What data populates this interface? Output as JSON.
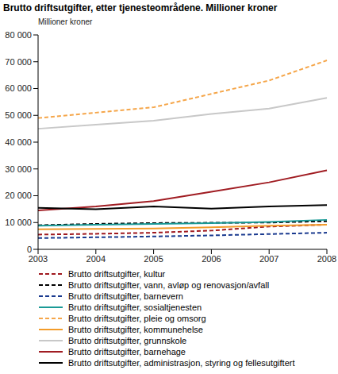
{
  "chart_data": {
    "type": "line",
    "title": "Brutto driftsutgifter, etter tjenesteområdene. Millioner kroner",
    "y_label": "Millioner kroner",
    "categories": [
      "2003",
      "2004",
      "2005",
      "2006",
      "2007",
      "2008"
    ],
    "ylim": [
      0,
      80000
    ],
    "yticks": [
      0,
      {
        "value": 10000,
        "label": "10 000"
      },
      {
        "value": 20000,
        "label": "20 000"
      },
      {
        "value": 30000,
        "label": "30 000"
      },
      {
        "value": 40000,
        "label": "40 000"
      },
      {
        "value": 50000,
        "label": "50 000"
      },
      {
        "value": 60000,
        "label": "60 000"
      },
      {
        "value": 70000,
        "label": "70 000"
      },
      {
        "value": 80000,
        "label": "80 000"
      }
    ],
    "grid": false,
    "legend": "bottom",
    "series": [
      {
        "name": "Brutto driftsutgifter, kultur",
        "color": "#a0181e",
        "line_style": "dashed",
        "values": [
          5500,
          5800,
          6200,
          7000,
          8500,
          9200
        ]
      },
      {
        "name": "Brutto driftsutgifter, vann, avløp og renovasjon/avfall",
        "color": "#000000",
        "line_style": "dashed",
        "values": [
          9000,
          9500,
          9800,
          9900,
          10000,
          10500
        ]
      },
      {
        "name": "Brutto driftsutgifter, barnevern",
        "color": "#1a3a8f",
        "line_style": "dashed",
        "values": [
          4200,
          4500,
          4800,
          5200,
          5700,
          6200
        ]
      },
      {
        "name": "Brutto driftsutgifter, sosialtjenesten",
        "color": "#1a9a96",
        "line_style": "solid",
        "values": [
          8800,
          9200,
          9500,
          9800,
          10200,
          11000
        ]
      },
      {
        "name": "Brutto driftsutgifter, pleie og omsorg",
        "color": "#f5a64a",
        "line_style": "dashed",
        "values": [
          49000,
          51000,
          53000,
          58000,
          63000,
          70500
        ]
      },
      {
        "name": "Brutto driftsutgifter, kommunehelse",
        "color": "#f39c2a",
        "line_style": "solid",
        "values": [
          7500,
          7600,
          7800,
          8200,
          8800,
          9200
        ]
      },
      {
        "name": "Brutto driftsutgifter, grunnskole",
        "color": "#c8c8c8",
        "line_style": "solid",
        "values": [
          45000,
          46500,
          48000,
          50500,
          52500,
          56500
        ]
      },
      {
        "name": "Brutto driftsutgifter, barnehage",
        "color": "#a01c22",
        "line_style": "solid",
        "values": [
          14500,
          16000,
          18000,
          21500,
          25000,
          29500
        ]
      },
      {
        "name": "Brutto driftsutgifter, administrasjon, styring og fellesutgiftert",
        "color": "#000000",
        "line_style": "solid",
        "values": [
          15500,
          15000,
          16000,
          15200,
          16000,
          16500
        ]
      }
    ]
  }
}
